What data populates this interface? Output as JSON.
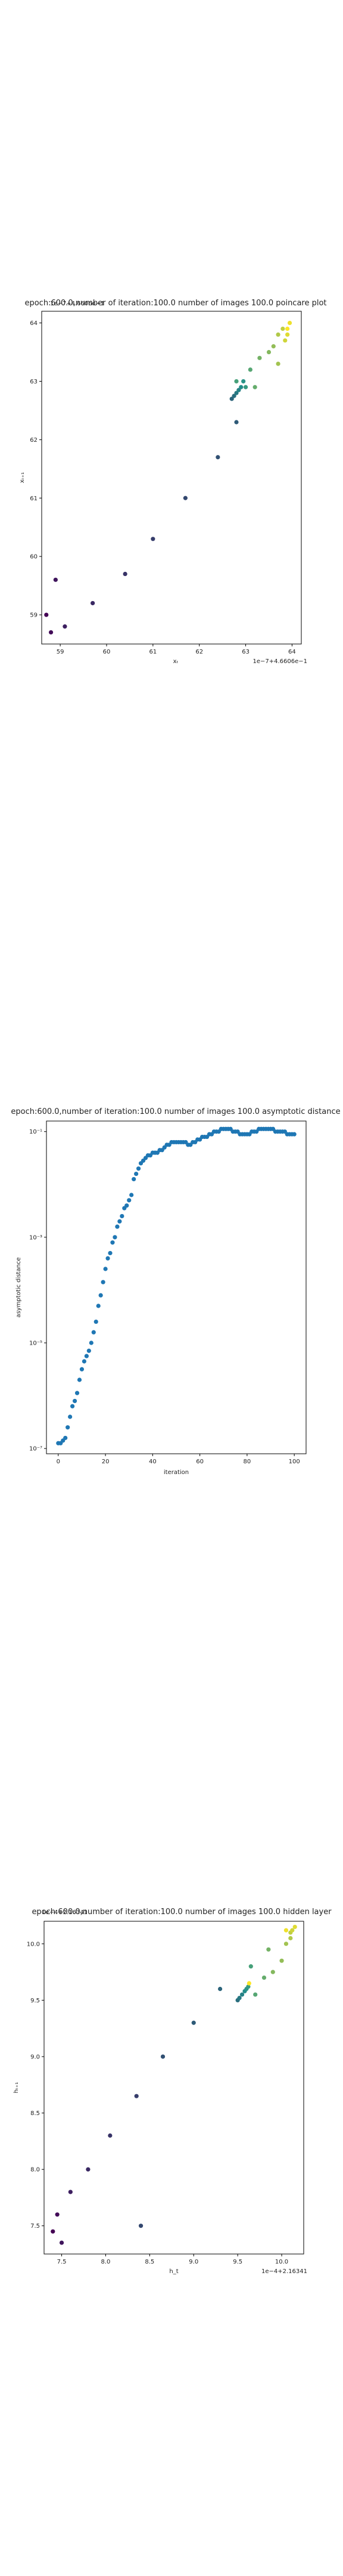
{
  "chart_data": [
    {
      "type": "scatter",
      "title": "epoch:600.0,number of iteration:100.0  number of images 100.0 poincare plot",
      "xlabel": "xₜ",
      "ylabel": "xₜ₊₁",
      "offset_text": "1e−7+4.6606e−1",
      "overlay_text": "1e−7+4.6606e−1",
      "xlim": [
        58.6,
        64.2
      ],
      "ylim": [
        58.5,
        64.2
      ],
      "xticks": [
        "59",
        "60",
        "61",
        "62",
        "63",
        "64"
      ],
      "yticks": [
        "59",
        "60",
        "61",
        "62",
        "63",
        "64"
      ],
      "points": [
        [
          58.7,
          59.0
        ],
        [
          58.8,
          58.7
        ],
        [
          58.9,
          59.6
        ],
        [
          59.1,
          58.8
        ],
        [
          59.7,
          59.2
        ],
        [
          60.4,
          59.7
        ],
        [
          61.0,
          60.3
        ],
        [
          61.7,
          61.0
        ],
        [
          62.4,
          61.7
        ],
        [
          62.8,
          62.3
        ],
        [
          62.7,
          62.7
        ],
        [
          62.75,
          62.75
        ],
        [
          62.8,
          62.8
        ],
        [
          62.85,
          62.85
        ],
        [
          62.9,
          62.9
        ],
        [
          62.95,
          63.0
        ],
        [
          63.0,
          62.9
        ],
        [
          62.8,
          63.0
        ],
        [
          63.1,
          63.2
        ],
        [
          63.2,
          62.9
        ],
        [
          63.3,
          63.4
        ],
        [
          63.5,
          63.5
        ],
        [
          63.6,
          63.6
        ],
        [
          63.7,
          63.3
        ],
        [
          63.7,
          63.8
        ],
        [
          63.8,
          63.9
        ],
        [
          63.85,
          63.7
        ],
        [
          63.9,
          63.8
        ],
        [
          63.95,
          64.0
        ],
        [
          63.9,
          63.9
        ]
      ],
      "colors": {
        "start": "#440154",
        "mid": "#21918c",
        "end": "#fde725"
      }
    },
    {
      "type": "scatter",
      "title": "epoch:600.0,number of iteration:100.0  number of images 100.0 asymptotic distance",
      "xlabel": "iteration",
      "ylabel": "asymptotic distance",
      "yscale": "log",
      "xlim": [
        -5,
        105
      ],
      "ylim_log10": [
        -7.1,
        -0.8
      ],
      "xticks": [
        "0",
        "20",
        "40",
        "60",
        "80",
        "100"
      ],
      "yticks": [
        "10⁻⁷",
        "10⁻⁵",
        "10⁻³",
        "10⁻¹"
      ],
      "ytick_exponents": [
        -7,
        -5,
        -3,
        -1
      ],
      "x": [
        0,
        1,
        2,
        3,
        4,
        5,
        6,
        7,
        8,
        9,
        10,
        11,
        12,
        13,
        14,
        15,
        16,
        17,
        18,
        19,
        20,
        21,
        22,
        23,
        24,
        25,
        26,
        27,
        28,
        29,
        30,
        31,
        32,
        33,
        34,
        35,
        36,
        37,
        38,
        39,
        40,
        41,
        42,
        43,
        44,
        45,
        46,
        47,
        48,
        49,
        50,
        51,
        52,
        53,
        54,
        55,
        56,
        57,
        58,
        59,
        60,
        61,
        62,
        63,
        64,
        65,
        66,
        67,
        68,
        69,
        70,
        71,
        72,
        73,
        74,
        75,
        76,
        77,
        78,
        79,
        80,
        81,
        82,
        83,
        84,
        85,
        86,
        87,
        88,
        89,
        90,
        91,
        92,
        93,
        94,
        95,
        96,
        97,
        98,
        99,
        100
      ],
      "log10_values": [
        -6.9,
        -6.9,
        -6.85,
        -6.8,
        -6.6,
        -6.4,
        -6.2,
        -6.1,
        -5.95,
        -5.7,
        -5.5,
        -5.35,
        -5.25,
        -5.15,
        -5.0,
        -4.8,
        -4.6,
        -4.3,
        -4.1,
        -3.85,
        -3.6,
        -3.4,
        -3.3,
        -3.1,
        -3.0,
        -2.8,
        -2.7,
        -2.6,
        -2.45,
        -2.4,
        -2.3,
        -2.2,
        -1.9,
        -1.8,
        -1.7,
        -1.6,
        -1.55,
        -1.5,
        -1.45,
        -1.45,
        -1.4,
        -1.4,
        -1.4,
        -1.35,
        -1.35,
        -1.3,
        -1.25,
        -1.25,
        -1.2,
        -1.2,
        -1.2,
        -1.2,
        -1.2,
        -1.2,
        -1.2,
        -1.25,
        -1.25,
        -1.2,
        -1.2,
        -1.15,
        -1.15,
        -1.1,
        -1.1,
        -1.1,
        -1.05,
        -1.05,
        -1.0,
        -1.0,
        -1.0,
        -0.95,
        -0.95,
        -0.95,
        -0.95,
        -0.95,
        -1.0,
        -1.0,
        -1.0,
        -1.05,
        -1.05,
        -1.05,
        -1.05,
        -1.05,
        -1.0,
        -1.0,
        -1.0,
        -0.95,
        -0.95,
        -0.95,
        -0.95,
        -0.95,
        -0.95,
        -0.95,
        -1.0,
        -1.0,
        -1.0,
        -1.0,
        -1.0,
        -1.05,
        -1.05,
        -1.05,
        -1.05
      ],
      "color": "#1f77b4"
    },
    {
      "type": "scatter",
      "title": "epoch:600.0,number of iteration:100.0  number of images 100.0 hidden layer",
      "xlabel": "h_t",
      "ylabel": "hₜ₊₁",
      "offset_text": "1e−4+2.16341",
      "overlay_text": "1e−4+2.16341",
      "xlim": [
        7.3,
        10.25
      ],
      "ylim": [
        7.25,
        10.2
      ],
      "xticks": [
        "7.5",
        "8.0",
        "8.5",
        "9.0",
        "9.5",
        "10.0"
      ],
      "yticks": [
        "7.5",
        "8.0",
        "8.5",
        "9.0",
        "9.5",
        "10.0"
      ],
      "points": [
        [
          7.4,
          7.45
        ],
        [
          7.45,
          7.6
        ],
        [
          7.5,
          7.35
        ],
        [
          7.6,
          7.8
        ],
        [
          7.8,
          8.0
        ],
        [
          8.05,
          8.3
        ],
        [
          8.35,
          8.65
        ],
        [
          8.4,
          7.5
        ],
        [
          8.65,
          9.0
        ],
        [
          9.0,
          9.3
        ],
        [
          9.3,
          9.6
        ],
        [
          9.5,
          9.5
        ],
        [
          9.52,
          9.52
        ],
        [
          9.55,
          9.55
        ],
        [
          9.58,
          9.58
        ],
        [
          9.6,
          9.6
        ],
        [
          9.62,
          9.62
        ],
        [
          9.65,
          9.8
        ],
        [
          9.7,
          9.55
        ],
        [
          9.8,
          9.7
        ],
        [
          9.85,
          9.95
        ],
        [
          9.9,
          9.75
        ],
        [
          10.0,
          9.85
        ],
        [
          10.05,
          10.0
        ],
        [
          10.1,
          10.05
        ],
        [
          10.1,
          10.1
        ],
        [
          10.12,
          10.12
        ],
        [
          10.15,
          10.15
        ],
        [
          10.05,
          10.12
        ],
        [
          9.63,
          9.65
        ]
      ],
      "colors": {
        "start": "#440154",
        "mid": "#21918c",
        "end": "#fde725"
      }
    }
  ]
}
